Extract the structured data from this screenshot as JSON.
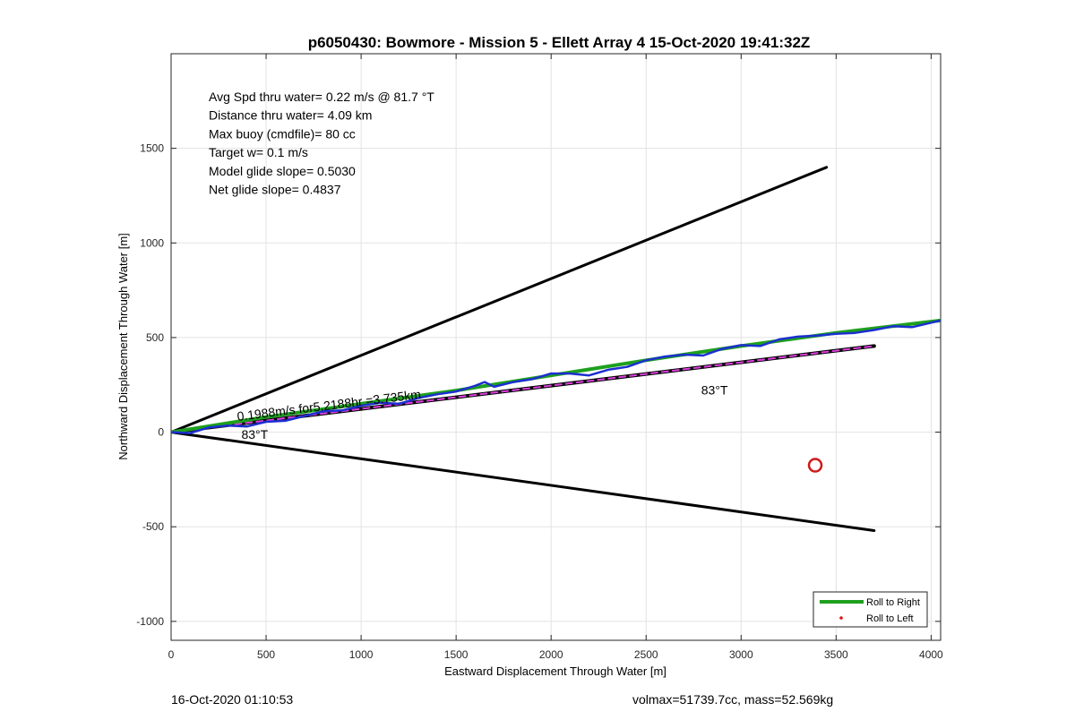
{
  "chart_data": {
    "type": "line",
    "title": "p6050430: Bowmore - Mission 5 - Ellett Array 4 15-Oct-2020 19:41:32Z",
    "xlabel": "Eastward Displacement Through Water [m]",
    "ylabel": "Northward Displacement Through Water [m]",
    "xlim": [
      0,
      4050
    ],
    "ylim": [
      -1100,
      2000
    ],
    "xticks": [
      0,
      500,
      1000,
      1500,
      2000,
      2500,
      3000,
      3500,
      4000
    ],
    "yticks": [
      -1000,
      -500,
      0,
      500,
      1000,
      1500
    ],
    "grid": true,
    "legend_position": "bottom-right",
    "legend": [
      {
        "label": "Roll to Right",
        "color": "#1ea01e",
        "marker": "line"
      },
      {
        "label": "Roll to Left",
        "color": "#e01010",
        "marker": "dot"
      }
    ],
    "stats": [
      "Avg Spd thru water=  0.22 m/s @  81.7 °T",
      "Distance thru water=  4.09 km",
      "Max buoy (cmdfile)= 80 cc",
      "Target w= 0.1 m/s",
      "Model glide slope= 0.5030",
      "Net glide slope= 0.4837"
    ],
    "annotations": [
      {
        "text": "0.1988m/s for5.2188hr =3.735km",
        "x": 350,
        "y": 60,
        "rotate_with_slope": true
      },
      {
        "text": "83°T",
        "x": 370,
        "y": -35
      },
      {
        "text": "83°T",
        "x": 2790,
        "y": 200
      }
    ],
    "series": [
      {
        "kind": "envelope",
        "color": "#000000",
        "x": [
          0,
          3450
        ],
        "y": [
          0,
          1400
        ]
      },
      {
        "kind": "envelope",
        "color": "#000000",
        "x": [
          0,
          3700
        ],
        "y": [
          0,
          -520
        ]
      },
      {
        "kind": "mean-heading",
        "color": "#000000",
        "x": [
          0,
          3700
        ],
        "y": [
          0,
          455
        ]
      },
      {
        "kind": "mean-heading-overlay",
        "color": "#e040e0",
        "x": [
          0,
          3700
        ],
        "y": [
          0,
          455
        ]
      },
      {
        "kind": "track-fit",
        "color": "#1ea01e",
        "x": [
          0,
          500,
          1000,
          1500,
          2000,
          2500,
          3000,
          3500,
          4050
        ],
        "y": [
          0,
          80,
          150,
          220,
          300,
          380,
          455,
          525,
          590
        ]
      },
      {
        "kind": "track",
        "color": "#1c2fd0",
        "x": [
          0,
          100,
          200,
          300,
          400,
          500,
          600,
          700,
          800,
          900,
          1000,
          1100,
          1200,
          1300,
          1400,
          1500,
          1600,
          1650,
          1700,
          1800,
          1900,
          2000,
          2100,
          2200,
          2300,
          2400,
          2500,
          2600,
          2700,
          2800,
          2900,
          3000,
          3100,
          3200,
          3300,
          3400,
          3500,
          3600,
          3700,
          3800,
          3900,
          4050
        ],
        "y": [
          0,
          -5,
          25,
          35,
          30,
          55,
          60,
          85,
          110,
          115,
          140,
          155,
          150,
          180,
          200,
          215,
          245,
          265,
          240,
          265,
          280,
          310,
          310,
          300,
          330,
          345,
          380,
          400,
          410,
          405,
          440,
          460,
          455,
          490,
          505,
          510,
          520,
          525,
          540,
          560,
          555,
          590
        ]
      },
      {
        "kind": "surface-point",
        "color": "#d01818",
        "x": [
          3390
        ],
        "y": [
          -175
        ]
      }
    ]
  },
  "footer": {
    "left": "16-Oct-2020 01:10:53",
    "right": "volmax=51739.7cc, mass=52.569kg"
  }
}
